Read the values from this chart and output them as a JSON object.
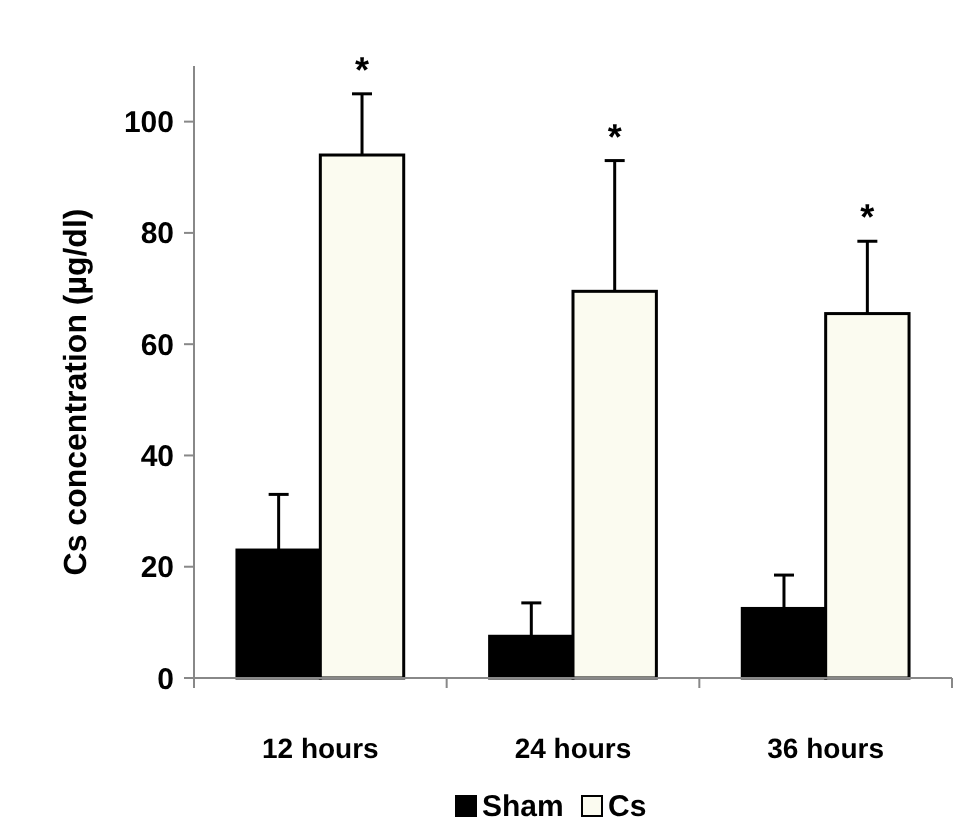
{
  "chart_data": {
    "type": "bar",
    "ylabel": "Cs concentration (µg/dl)",
    "categories": [
      "12 hours",
      "24 hours",
      "36 hours"
    ],
    "series": [
      {
        "name": "Sham",
        "color": "#000000",
        "values": [
          23,
          7.5,
          12.5
        ],
        "errors": [
          [
            23,
            33
          ],
          [
            7.5,
            13.5
          ],
          [
            12.5,
            18.5
          ]
        ]
      },
      {
        "name": "Cs",
        "color": "#fbfbf0",
        "values": [
          94,
          69.5,
          65.5
        ],
        "errors": [
          [
            94,
            105
          ],
          [
            69.5,
            93
          ],
          [
            65.5,
            78.5
          ]
        ]
      }
    ],
    "ylim": [
      0,
      110
    ],
    "yticks": [
      0,
      20,
      40,
      60,
      80,
      100
    ],
    "grid": false,
    "legend": "bottom",
    "annotations": [
      "*",
      "*",
      "*"
    ]
  }
}
